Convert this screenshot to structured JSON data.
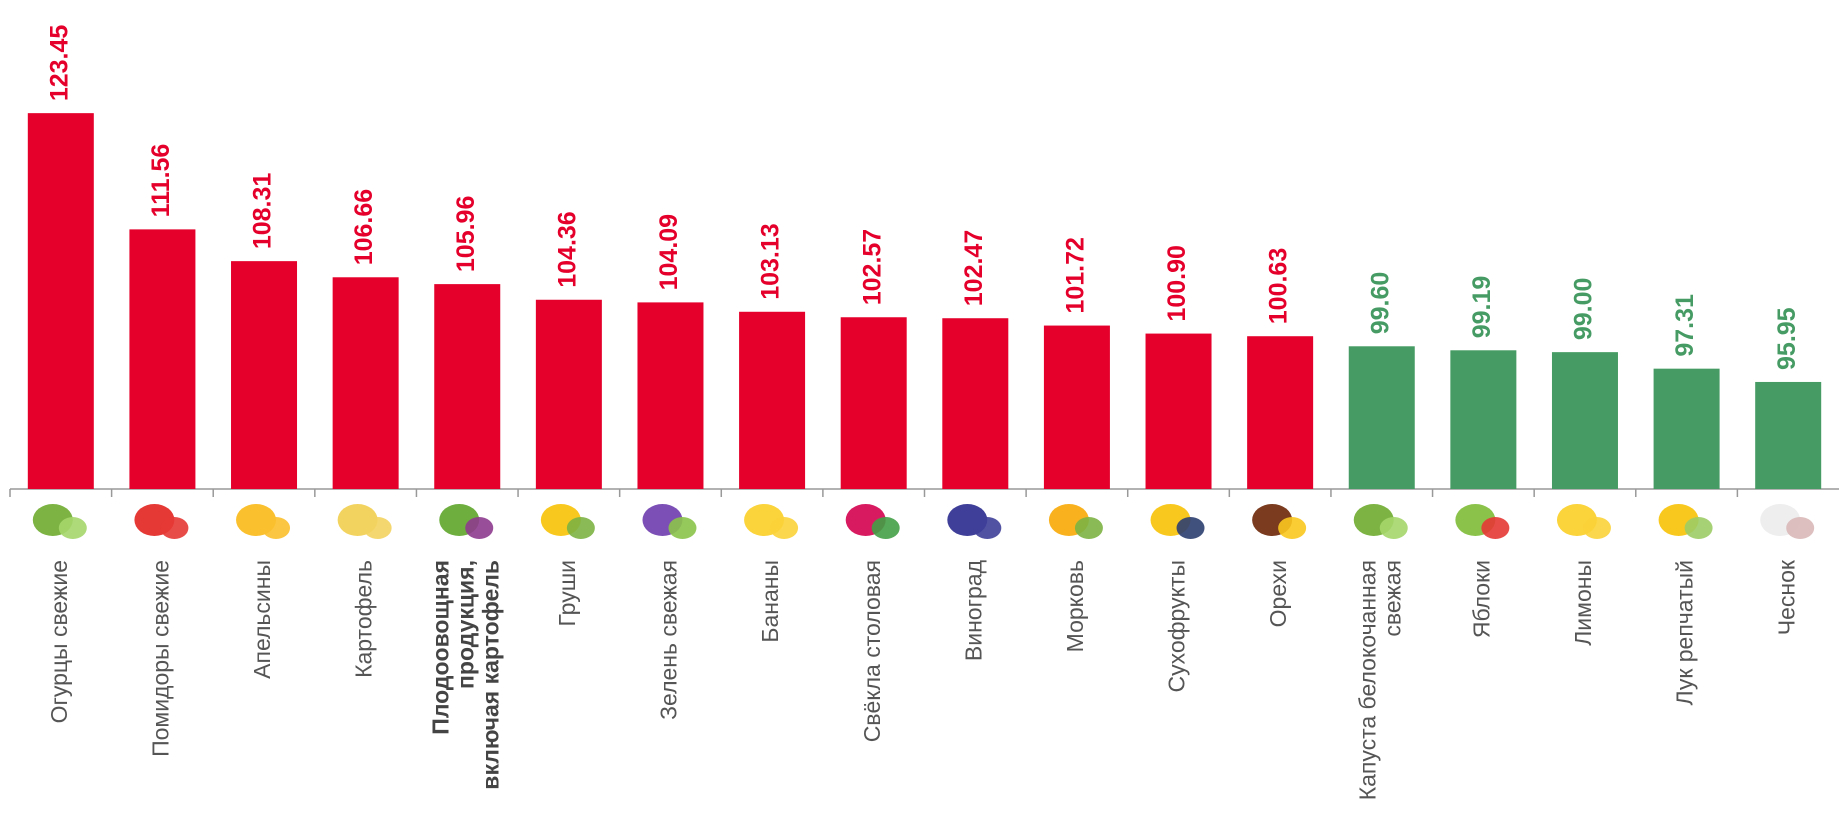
{
  "chart_data": {
    "type": "bar",
    "categories": [
      "Огурцы свежие",
      "Помидоры свежие",
      "Апельсины",
      "Картофель",
      [
        "Плодоовощная",
        "продукция,",
        "включая картофель"
      ],
      "Груши",
      "Зелень свежая",
      "Бананы",
      "Свёкла столовая",
      "Виноград",
      "Морковь",
      "Сухофрукты",
      "Орехи",
      [
        "Капуста белокочанная",
        "свежая"
      ],
      "Яблоки",
      "Лимоны",
      "Лук репчатый",
      "Чеснок"
    ],
    "values": [
      123.45,
      111.56,
      108.31,
      106.66,
      105.96,
      104.36,
      104.09,
      103.13,
      102.57,
      102.47,
      101.72,
      100.9,
      100.63,
      99.6,
      99.19,
      99.0,
      97.31,
      95.95
    ],
    "value_labels": [
      "123.45",
      "111.56",
      "108.31",
      "106.66",
      "105.96",
      "104.36",
      "104.09",
      "103.13",
      "102.57",
      "102.47",
      "101.72",
      "100.90",
      "100.63",
      "99.60",
      "99.19",
      "99.00",
      "97.31",
      "95.95"
    ],
    "colors": [
      "#e4002b",
      "#e4002b",
      "#e4002b",
      "#e4002b",
      "#e4002b",
      "#e4002b",
      "#e4002b",
      "#e4002b",
      "#e4002b",
      "#e4002b",
      "#e4002b",
      "#e4002b",
      "#e4002b",
      "#459b63",
      "#459b63",
      "#459b63",
      "#459b63",
      "#459b63"
    ],
    "bold_categories": [
      4
    ],
    "ylim": [
      85,
      125
    ]
  }
}
